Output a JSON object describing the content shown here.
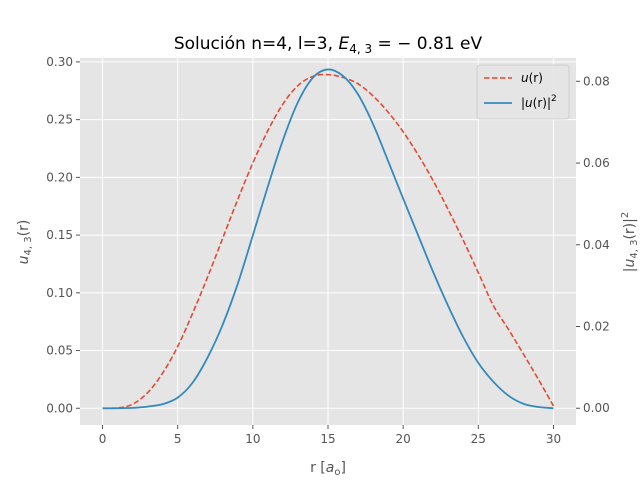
{
  "chart_data": {
    "type": "line",
    "title": {
      "prefix": "Solución n=4, l=3, ",
      "var": "E",
      "sub": "4, 3",
      "suffix": " = − 0.81 eV"
    },
    "xlabel": {
      "text": "r [",
      "var": "a",
      "sub": "o",
      "close": "]"
    },
    "ylabel_left": {
      "var": "u",
      "sub": "4, 3",
      "rest": "(r)"
    },
    "ylabel_right": {
      "open": "|",
      "var": "u",
      "sub": "4, 3",
      "rest": "(r)|",
      "sup": "2"
    },
    "xlim": [
      -1.5,
      31.5
    ],
    "ylim_left": [
      -0.0145,
      0.3034
    ],
    "ylim_right": [
      -0.0041,
      0.0857
    ],
    "x_ticks": [
      0,
      5,
      10,
      15,
      20,
      25,
      30
    ],
    "x_tick_labels": [
      "0",
      "5",
      "10",
      "15",
      "20",
      "25",
      "30"
    ],
    "y_left_ticks": [
      0,
      0.05,
      0.1,
      0.15,
      0.2,
      0.25,
      0.3
    ],
    "y_left_tick_labels": [
      "0.00",
      "0.05",
      "0.10",
      "0.15",
      "0.20",
      "0.25",
      "0.30"
    ],
    "y_right_ticks": [
      0,
      0.02,
      0.04,
      0.06,
      0.08
    ],
    "y_right_tick_labels": [
      "0.00",
      "0.02",
      "0.04",
      "0.06",
      "0.08"
    ],
    "grid": true,
    "legend_placement": "top-right",
    "series": [
      {
        "name": "u(r)",
        "legend": {
          "var": "u",
          "rest": "(r)"
        },
        "axis": "left",
        "style": "dashed",
        "color": "#E24A33",
        "x": [
          0,
          1,
          2,
          3,
          4,
          5,
          6,
          7,
          8,
          9,
          10,
          11,
          12,
          13,
          14,
          15,
          16,
          17,
          18,
          19,
          20,
          21,
          22,
          23,
          24,
          25,
          26,
          27,
          28,
          29,
          30
        ],
        "y": [
          0,
          0.0003,
          0.0035,
          0.0135,
          0.0305,
          0.0535,
          0.0825,
          0.114,
          0.1475,
          0.181,
          0.2125,
          0.2405,
          0.2635,
          0.2795,
          0.2875,
          0.289,
          0.2865,
          0.281,
          0.2705,
          0.2565,
          0.2395,
          0.2195,
          0.197,
          0.172,
          0.1455,
          0.1175,
          0.089,
          0.0685,
          0.047,
          0.025,
          0.002
        ]
      },
      {
        "name": "|u(r)|^2",
        "legend": {
          "open": "|",
          "var": "u",
          "rest": "(r)|",
          "sup": "2"
        },
        "axis": "right",
        "style": "solid",
        "color": "#348ABD",
        "x": [
          0,
          1,
          2,
          3,
          4,
          5,
          6,
          7,
          8,
          9,
          10,
          11,
          12,
          13,
          14,
          15,
          16,
          17,
          18,
          19,
          20,
          21,
          22,
          23,
          24,
          25,
          26,
          27,
          28,
          29,
          30
        ],
        "y": [
          0,
          0,
          0.0001,
          0.0004,
          0.001,
          0.0026,
          0.0063,
          0.0125,
          0.0205,
          0.0305,
          0.0423,
          0.0543,
          0.0656,
          0.0749,
          0.0809,
          0.0829,
          0.0813,
          0.0768,
          0.0695,
          0.0605,
          0.0513,
          0.0423,
          0.0333,
          0.025,
          0.0174,
          0.0111,
          0.0065,
          0.0031,
          0.0011,
          0.0003,
          0
        ]
      }
    ]
  }
}
